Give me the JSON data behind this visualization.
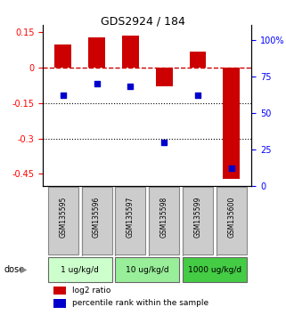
{
  "title": "GDS2924 / 184",
  "samples": [
    "GSM135595",
    "GSM135596",
    "GSM135597",
    "GSM135598",
    "GSM135599",
    "GSM135600"
  ],
  "log2_ratio": [
    0.1,
    0.13,
    0.135,
    -0.08,
    0.07,
    -0.47
  ],
  "percentile_rank": [
    62,
    70,
    68,
    30,
    62,
    12
  ],
  "dose_groups": [
    {
      "label": "1 ug/kg/d",
      "start": 0,
      "end": 1,
      "color": "#ccffcc"
    },
    {
      "label": "10 ug/kg/d",
      "start": 2,
      "end": 3,
      "color": "#99ee99"
    },
    {
      "label": "1000 ug/kg/d",
      "start": 4,
      "end": 5,
      "color": "#44cc44"
    }
  ],
  "ylim_left": [
    -0.5,
    0.18
  ],
  "ylim_right": [
    0,
    110
  ],
  "yticks_left": [
    0.15,
    0,
    -0.15,
    -0.3,
    -0.45
  ],
  "yticks_right": [
    100,
    75,
    50,
    25,
    0
  ],
  "ytick_right_labels": [
    "100%",
    "75",
    "50",
    "25",
    "0"
  ],
  "bar_color": "#cc0000",
  "dot_color": "#0000cc",
  "hline_color": "#cc0000",
  "sample_box_color": "#cccccc",
  "dose_label": "dose",
  "legend_bar": "log2 ratio",
  "legend_dot": "percentile rank within the sample"
}
